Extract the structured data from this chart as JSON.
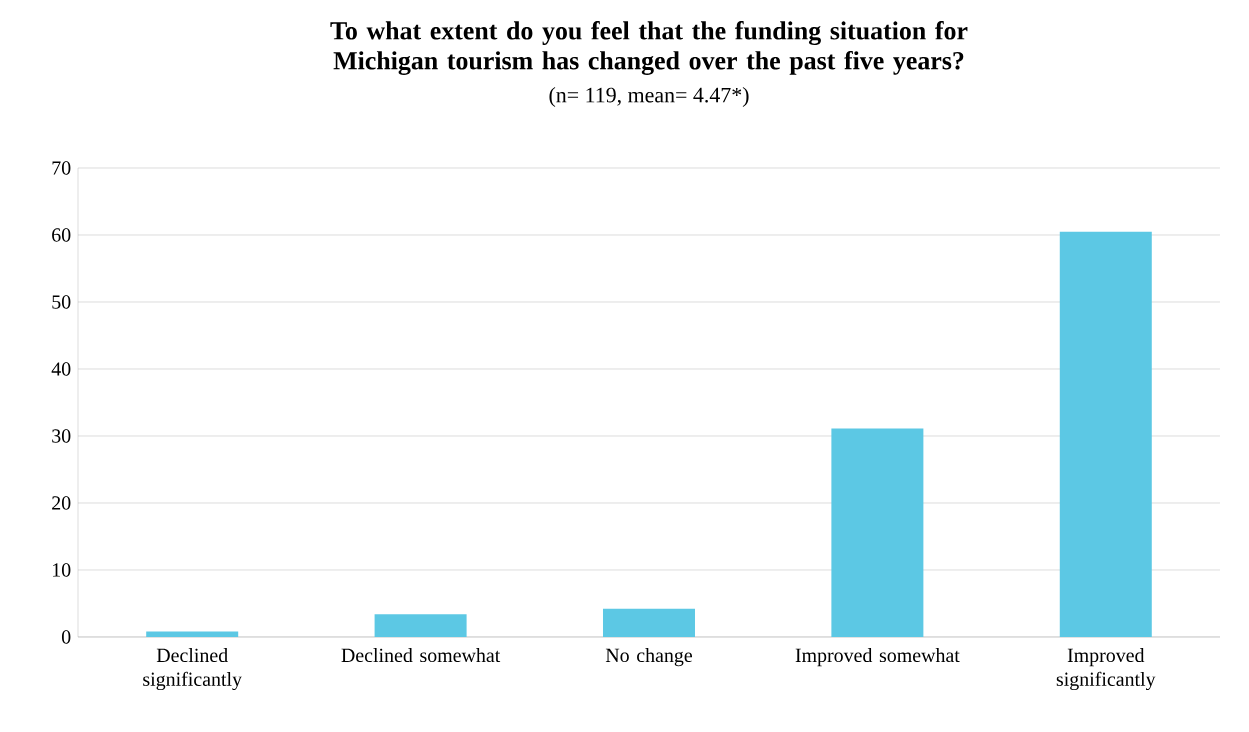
{
  "chart_data": {
    "type": "bar",
    "title": "To what extent do you feel that the funding situation for Michigan tourism has changed over the past five years?",
    "subtitle": "(n= 119, mean= 4.47*)",
    "categories": [
      "Declined significantly",
      "Declined somewhat",
      "No change",
      "Improved somewhat",
      "Improved significantly"
    ],
    "values": [
      0.8,
      3.4,
      4.2,
      31.1,
      60.5
    ],
    "color": "#5cc8e4",
    "ylim": [
      0,
      70
    ],
    "yticks": [
      0,
      10,
      20,
      30,
      40,
      50,
      60,
      70
    ],
    "grid": "y"
  }
}
